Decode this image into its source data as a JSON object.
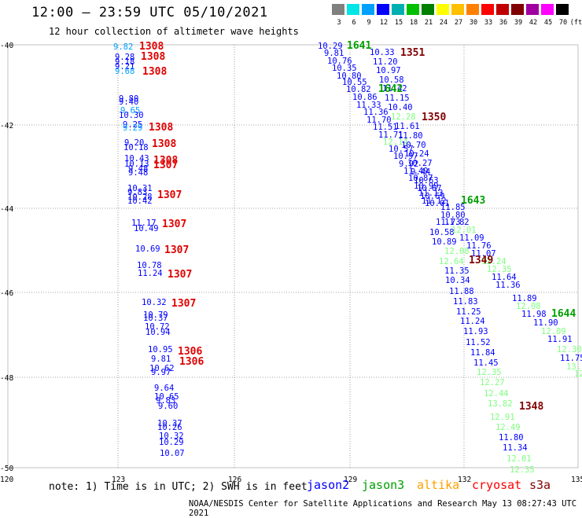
{
  "header": {
    "title": "12:00 — 23:59 UTC 05/10/2021",
    "subtitle": "12 hour collection of altimeter wave heights"
  },
  "colorbar": {
    "labels": [
      "3",
      "6",
      "9",
      "12",
      "15",
      "18",
      "21",
      "24",
      "27",
      "30",
      "33",
      "36",
      "39",
      "42",
      "45",
      "70",
      "(ft)"
    ],
    "colors": [
      "#808080",
      "#00e5e5",
      "#00a0ff",
      "#0000ff",
      "#00b0b0",
      "#00c000",
      "#008000",
      "#ffff00",
      "#ffc000",
      "#ff8000",
      "#ff0000",
      "#c00000",
      "#800000",
      "#a000a0",
      "#ff00ff",
      "#000000"
    ]
  },
  "axes": {
    "lat_labels": [
      "-40",
      "-42",
      "-44",
      "-46",
      "-48",
      "-50"
    ],
    "lon_labels": [
      "120",
      "123",
      "126",
      "129",
      "132",
      "135"
    ]
  },
  "tracks": {
    "left_points": [
      {
        "t": "9.82",
        "c": "#00a0ff"
      },
      {
        "t": "9.28",
        "c": "#0000ff"
      },
      {
        "t": "9.18",
        "c": "#0000ff"
      },
      {
        "t": "9.21",
        "c": "#0000ff"
      },
      {
        "t": "9.68",
        "c": "#00a0ff"
      },
      {
        "t": "9.80",
        "c": "#0000ff"
      },
      {
        "t": "9.40",
        "c": "#0000ff"
      },
      {
        "t": "9.65",
        "c": "#00a0ff"
      },
      {
        "t": "10.30",
        "c": "#0000ff"
      },
      {
        "t": "9.25",
        "c": "#0000ff"
      },
      {
        "t": "9.29",
        "c": "#00a0ff"
      },
      {
        "t": "9.20",
        "c": "#0000ff"
      },
      {
        "t": "10.18",
        "c": "#0000ff"
      },
      {
        "t": "10.43",
        "c": "#0000ff"
      },
      {
        "t": "10.13",
        "c": "#0000ff"
      },
      {
        "t": "9.48",
        "c": "#0000ff"
      },
      {
        "t": "9.48",
        "c": "#0000ff"
      },
      {
        "t": "10.31",
        "c": "#0000ff"
      },
      {
        "t": "9.83",
        "c": "#0000ff"
      },
      {
        "t": "10.28",
        "c": "#0000ff"
      },
      {
        "t": "10.42",
        "c": "#0000ff"
      },
      {
        "t": "11.17",
        "c": "#0000ff"
      },
      {
        "t": "10.49",
        "c": "#0000ff"
      },
      {
        "t": "10.69",
        "c": "#0000ff"
      },
      {
        "t": "10.78",
        "c": "#0000ff"
      },
      {
        "t": "11.24",
        "c": "#0000ff"
      },
      {
        "t": "10.32",
        "c": "#0000ff"
      },
      {
        "t": "10.79",
        "c": "#0000ff"
      },
      {
        "t": "10.37",
        "c": "#0000ff"
      },
      {
        "t": "10.72",
        "c": "#0000ff"
      },
      {
        "t": "10.94",
        "c": "#0000ff"
      },
      {
        "t": "10.95",
        "c": "#0000ff"
      },
      {
        "t": "9.81",
        "c": "#0000ff"
      },
      {
        "t": "10.62",
        "c": "#0000ff"
      },
      {
        "t": "9.97",
        "c": "#0000ff"
      },
      {
        "t": "9.64",
        "c": "#0000ff"
      },
      {
        "t": "10.65",
        "c": "#0000ff"
      },
      {
        "t": "9.83",
        "c": "#0000ff"
      },
      {
        "t": "9.60",
        "c": "#0000ff"
      },
      {
        "t": "10.37",
        "c": "#0000ff"
      },
      {
        "t": "10.26",
        "c": "#0000ff"
      },
      {
        "t": "10.32",
        "c": "#0000ff"
      },
      {
        "t": "10.29",
        "c": "#0000ff"
      },
      {
        "t": "10.07",
        "c": "#0000ff"
      }
    ],
    "left_passes": [
      "1308",
      "1308",
      "1308",
      "1308",
      "1308",
      "1308",
      "1307",
      "1307",
      "1307",
      "1307",
      "1307",
      "1307",
      "1306",
      "1306"
    ],
    "middle_points": [
      {
        "t": "10.29",
        "c": "#0000ff"
      },
      {
        "t": "9.81",
        "c": "#0000ff"
      },
      {
        "t": "10.76",
        "c": "#0000ff"
      },
      {
        "t": "10.35",
        "c": "#0000ff"
      },
      {
        "t": "10.80",
        "c": "#0000ff"
      },
      {
        "t": "10.55",
        "c": "#0000ff"
      },
      {
        "t": "10.82",
        "c": "#0000ff"
      },
      {
        "t": "10.86",
        "c": "#0000ff"
      },
      {
        "t": "11.33",
        "c": "#0000ff"
      },
      {
        "t": "11.36",
        "c": "#0000ff"
      },
      {
        "t": "11.70",
        "c": "#0000ff"
      },
      {
        "t": "11.51",
        "c": "#0000ff"
      },
      {
        "t": "11.71",
        "c": "#0000ff"
      },
      {
        "t": "12.14",
        "c": "#7fff7f"
      },
      {
        "t": "10.57",
        "c": "#0000ff"
      },
      {
        "t": "10.97",
        "c": "#0000ff"
      },
      {
        "t": "9.92",
        "c": "#0000ff"
      },
      {
        "t": "11.49",
        "c": "#0000ff"
      },
      {
        "t": "10.87",
        "c": "#0000ff"
      },
      {
        "t": "10.99",
        "c": "#0000ff"
      },
      {
        "t": "11.13",
        "c": "#0000ff"
      },
      {
        "t": "11.12",
        "c": "#0000ff"
      },
      {
        "t": "11.73",
        "c": "#0000ff"
      },
      {
        "t": "10.58",
        "c": "#0000ff"
      },
      {
        "t": "10.89",
        "c": "#0000ff"
      },
      {
        "t": "12.08",
        "c": "#7fff7f"
      },
      {
        "t": "12.64",
        "c": "#7fff7f"
      },
      {
        "t": "11.35",
        "c": "#0000ff"
      },
      {
        "t": "10.34",
        "c": "#0000ff"
      },
      {
        "t": "11.88",
        "c": "#0000ff"
      },
      {
        "t": "11.83",
        "c": "#0000ff"
      },
      {
        "t": "11.25",
        "c": "#0000ff"
      },
      {
        "t": "11.24",
        "c": "#0000ff"
      },
      {
        "t": "11.93",
        "c": "#0000ff"
      },
      {
        "t": "11.52",
        "c": "#0000ff"
      },
      {
        "t": "11.84",
        "c": "#0000ff"
      },
      {
        "t": "11.45",
        "c": "#0000ff"
      },
      {
        "t": "12.35",
        "c": "#7fff7f"
      },
      {
        "t": "12.27",
        "c": "#7fff7f"
      },
      {
        "t": "12.44",
        "c": "#7fff7f"
      },
      {
        "t": "13.82",
        "c": "#7fff7f"
      },
      {
        "t": "12.91",
        "c": "#7fff7f"
      },
      {
        "t": "12.49",
        "c": "#7fff7f"
      },
      {
        "t": "11.80",
        "c": "#0000ff"
      },
      {
        "t": "11.34",
        "c": "#0000ff"
      },
      {
        "t": "12.01",
        "c": "#7fff7f"
      },
      {
        "t": "12.35",
        "c": "#7fff7f"
      }
    ],
    "right_points": [
      {
        "t": "10.33",
        "c": "#0000ff"
      },
      {
        "t": "11.20",
        "c": "#0000ff"
      },
      {
        "t": "10.97",
        "c": "#0000ff"
      },
      {
        "t": "10.58",
        "c": "#0000ff"
      },
      {
        "t": "11.42",
        "c": "#0000ff"
      },
      {
        "t": "11.15",
        "c": "#0000ff"
      },
      {
        "t": "10.40",
        "c": "#0000ff"
      },
      {
        "t": "12.28",
        "c": "#7fff7f"
      },
      {
        "t": "11.61",
        "c": "#0000ff"
      },
      {
        "t": "11.80",
        "c": "#0000ff"
      },
      {
        "t": "10.70",
        "c": "#0000ff"
      },
      {
        "t": "10.24",
        "c": "#0000ff"
      },
      {
        "t": "10.27",
        "c": "#0000ff"
      },
      {
        "t": "9.44",
        "c": "#0000ff"
      },
      {
        "t": "10.63",
        "c": "#0000ff"
      },
      {
        "t": "10.67",
        "c": "#0000ff"
      },
      {
        "t": "10.69",
        "c": "#0000ff"
      },
      {
        "t": "10.01",
        "c": "#0000ff"
      },
      {
        "t": "11.85",
        "c": "#0000ff"
      },
      {
        "t": "10.80",
        "c": "#0000ff"
      },
      {
        "t": "11.82",
        "c": "#0000ff"
      },
      {
        "t": "12.01",
        "c": "#7fff7f"
      },
      {
        "t": "11.09",
        "c": "#0000ff"
      },
      {
        "t": "11.76",
        "c": "#0000ff"
      },
      {
        "t": "11.07",
        "c": "#0000ff"
      },
      {
        "t": "12.24",
        "c": "#7fff7f"
      },
      {
        "t": "12.35",
        "c": "#7fff7f"
      },
      {
        "t": "11.64",
        "c": "#0000ff"
      },
      {
        "t": "11.36",
        "c": "#0000ff"
      },
      {
        "t": "11.89",
        "c": "#0000ff"
      },
      {
        "t": "12.08",
        "c": "#7fff7f"
      },
      {
        "t": "11.98",
        "c": "#0000ff"
      },
      {
        "t": "11.90",
        "c": "#0000ff"
      },
      {
        "t": "12.09",
        "c": "#7fff7f"
      },
      {
        "t": "11.91",
        "c": "#0000ff"
      },
      {
        "t": "12.30",
        "c": "#7fff7f"
      },
      {
        "t": "11.75",
        "c": "#0000ff"
      },
      {
        "t": "13.23",
        "c": "#7fff7f"
      },
      {
        "t": "12.99",
        "c": "#7fff7f"
      },
      {
        "t": "11.2",
        "c": "#0000ff"
      }
    ],
    "right_passes": [
      {
        "t": "1641",
        "c": "#00a000"
      },
      {
        "t": "1351",
        "c": "#800000"
      },
      {
        "t": "1642",
        "c": "#00a000"
      },
      {
        "t": "1350",
        "c": "#800000"
      },
      {
        "t": "1643",
        "c": "#00a000"
      },
      {
        "t": "1349",
        "c": "#800000"
      },
      {
        "t": "1644",
        "c": "#00a000"
      },
      {
        "t": "1348",
        "c": "#800000"
      }
    ]
  },
  "footer": {
    "note": "note: 1) Time is in UTC; 2) SWH is in feet",
    "satellites": [
      {
        "name": "jason2",
        "color": "#0000ff"
      },
      {
        "name": "jason3",
        "color": "#00a000"
      },
      {
        "name": "altika",
        "color": "#ffa000"
      },
      {
        "name": "cryosat",
        "color": "#ff0000"
      },
      {
        "name": "s3a",
        "color": "#800000"
      }
    ],
    "credit": "NOAA/NESDIS Center for Satellite Applications and Research   May 13 08:27:43 UTC 2021"
  }
}
